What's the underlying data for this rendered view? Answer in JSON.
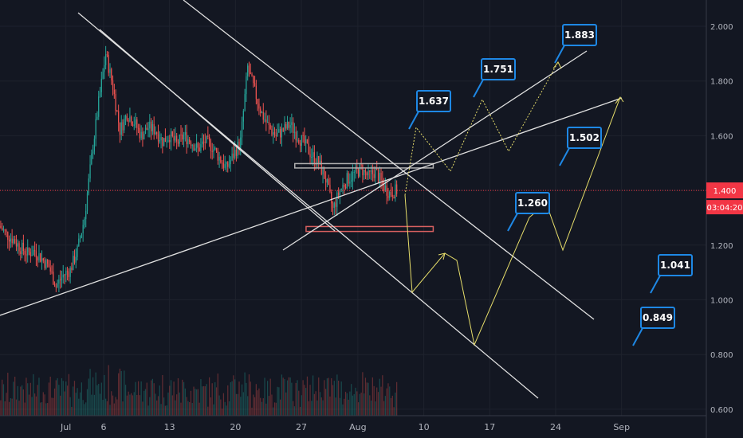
{
  "chart_data": {
    "type": "candlestick",
    "ylim": [
      0.6,
      2.08
    ],
    "y_ticks": [
      "2.000",
      "1.800",
      "1.600",
      "1.400",
      "1.200",
      "1.000",
      "0.800",
      "0.600"
    ],
    "x_ticks": [
      "Jul",
      "6",
      "13",
      "20",
      "27",
      "Aug",
      "10",
      "17",
      "24",
      "Sep"
    ],
    "x_tick_days": [
      2,
      6,
      13,
      20,
      27,
      33,
      40,
      47,
      54,
      61
    ],
    "x_axis_start_day": -5,
    "x_axis_end_day": 70,
    "current_price": "1.400",
    "current_price_value": 1.4,
    "countdown": "03:04:20",
    "colors": {
      "up": "#26a69a",
      "down": "#ef5350",
      "projection": "#e6dd6a",
      "callout": "#1e88e5",
      "trendline": "#e0e0e0",
      "current": "#f23645"
    },
    "targets": [
      {
        "label": "1.883",
        "value": 1.883
      },
      {
        "label": "1.751",
        "value": 1.751
      },
      {
        "label": "1.637",
        "value": 1.637
      },
      {
        "label": "1.502",
        "value": 1.502
      },
      {
        "label": "1.260",
        "value": 1.26
      },
      {
        "label": "1.041",
        "value": 1.041
      },
      {
        "label": "0.849",
        "value": 0.849
      }
    ],
    "series": [
      {
        "type": "close",
        "values": [
          1.27,
          1.24,
          1.22,
          1.19,
          1.17,
          1.18,
          1.15,
          1.12,
          1.05,
          1.09,
          1.11,
          1.18,
          1.3,
          1.52,
          1.72,
          1.9,
          1.78,
          1.62,
          1.68,
          1.65,
          1.6,
          1.63,
          1.62,
          1.58,
          1.6,
          1.57,
          1.6,
          1.58,
          1.55,
          1.58,
          1.56,
          1.52,
          1.48,
          1.53,
          1.58,
          1.85,
          1.76,
          1.68,
          1.63,
          1.6,
          1.62,
          1.64,
          1.6,
          1.57,
          1.53,
          1.5,
          1.44,
          1.33,
          1.4,
          1.44,
          1.46,
          1.48,
          1.45,
          1.47,
          1.42,
          1.39,
          1.4
        ]
      }
    ]
  }
}
